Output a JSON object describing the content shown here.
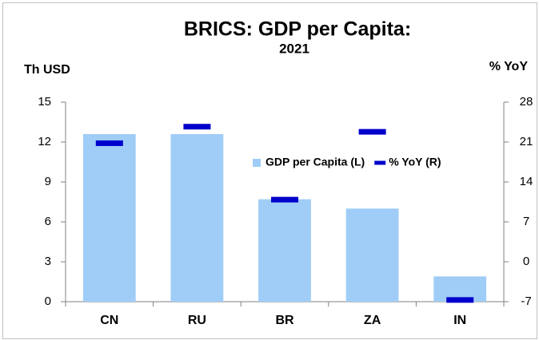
{
  "chart_data": {
    "type": "bar",
    "title": "BRICS: GDP per Capita:",
    "subtitle": "2021",
    "y_label": "Th USD",
    "y2_label": "% YoY",
    "categories": [
      "CN",
      "RU",
      "BR",
      "ZA",
      "IN"
    ],
    "series": [
      {
        "name": "GDP per Capita (L)",
        "color": "#9fcdf7",
        "type": "bar",
        "values": [
          12.6,
          12.6,
          7.7,
          7.0,
          1.9
        ]
      },
      {
        "name": "% YoY (R)",
        "color": "#0000cc",
        "type": "marker",
        "axis": "y2",
        "values": [
          20.8,
          23.7,
          10.9,
          22.8,
          -6.7
        ]
      }
    ],
    "ylim": [
      0,
      15
    ],
    "yticks": [
      0,
      3,
      6,
      9,
      12,
      15
    ],
    "y2lim": [
      -7,
      28
    ],
    "y2ticks": [
      -7,
      0,
      7,
      14,
      21,
      28
    ],
    "grid": false,
    "legend": "right"
  }
}
